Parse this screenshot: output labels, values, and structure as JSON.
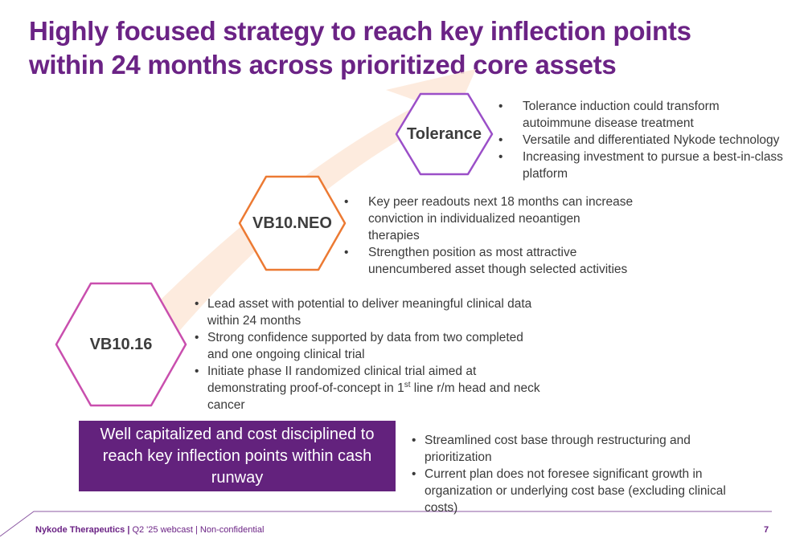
{
  "slide": {
    "title": "Highly focused strategy to reach key inflection points within 24 months across prioritized core assets"
  },
  "colors": {
    "brand_purple": "#6b2385",
    "callout_purple": "#63227d",
    "vb1016_outline": "#c94fae",
    "vb10neo_outline": "#ec7a33",
    "tolerance_outline": "#9b4fc8",
    "arrow_fill": "#fde7d8"
  },
  "assets": [
    {
      "name": "Tolerance",
      "bullets": [
        "Tolerance induction could transform autoimmune disease treatment",
        "Versatile and differentiated Nykode technology",
        "Increasing investment to pursue a best-in-class platform"
      ]
    },
    {
      "name": "VB10.NEO",
      "bullets": [
        "Key peer readouts next 18 months can increase conviction in individualized neoantigen therapies",
        "Strengthen position as most attractive unencumbered asset though selected activities"
      ]
    },
    {
      "name": "VB10.16",
      "bullets": [
        "Lead asset with potential to deliver meaningful clinical data within 24 months",
        "Strong confidence supported by data from two completed and one ongoing clinical trial"
      ],
      "bullet3": {
        "before": "Initiate phase II randomized clinical trial aimed at demonstrating proof-of-concept in 1",
        "sup": "st",
        "after": " line r/m head and neck cancer"
      }
    }
  ],
  "callout": {
    "text": "Well capitalized and cost disciplined to reach key inflection points within cash runway"
  },
  "cost_bullets": [
    "Streamlined cost base through restructuring and prioritization",
    "Current plan does not foresee significant growth in organization or underlying cost base (excluding clinical costs)"
  ],
  "footer": {
    "company": "Nykode Therapeutics |",
    "meta": " Q2 '25 webcast | Non-confidential",
    "page": "7"
  }
}
